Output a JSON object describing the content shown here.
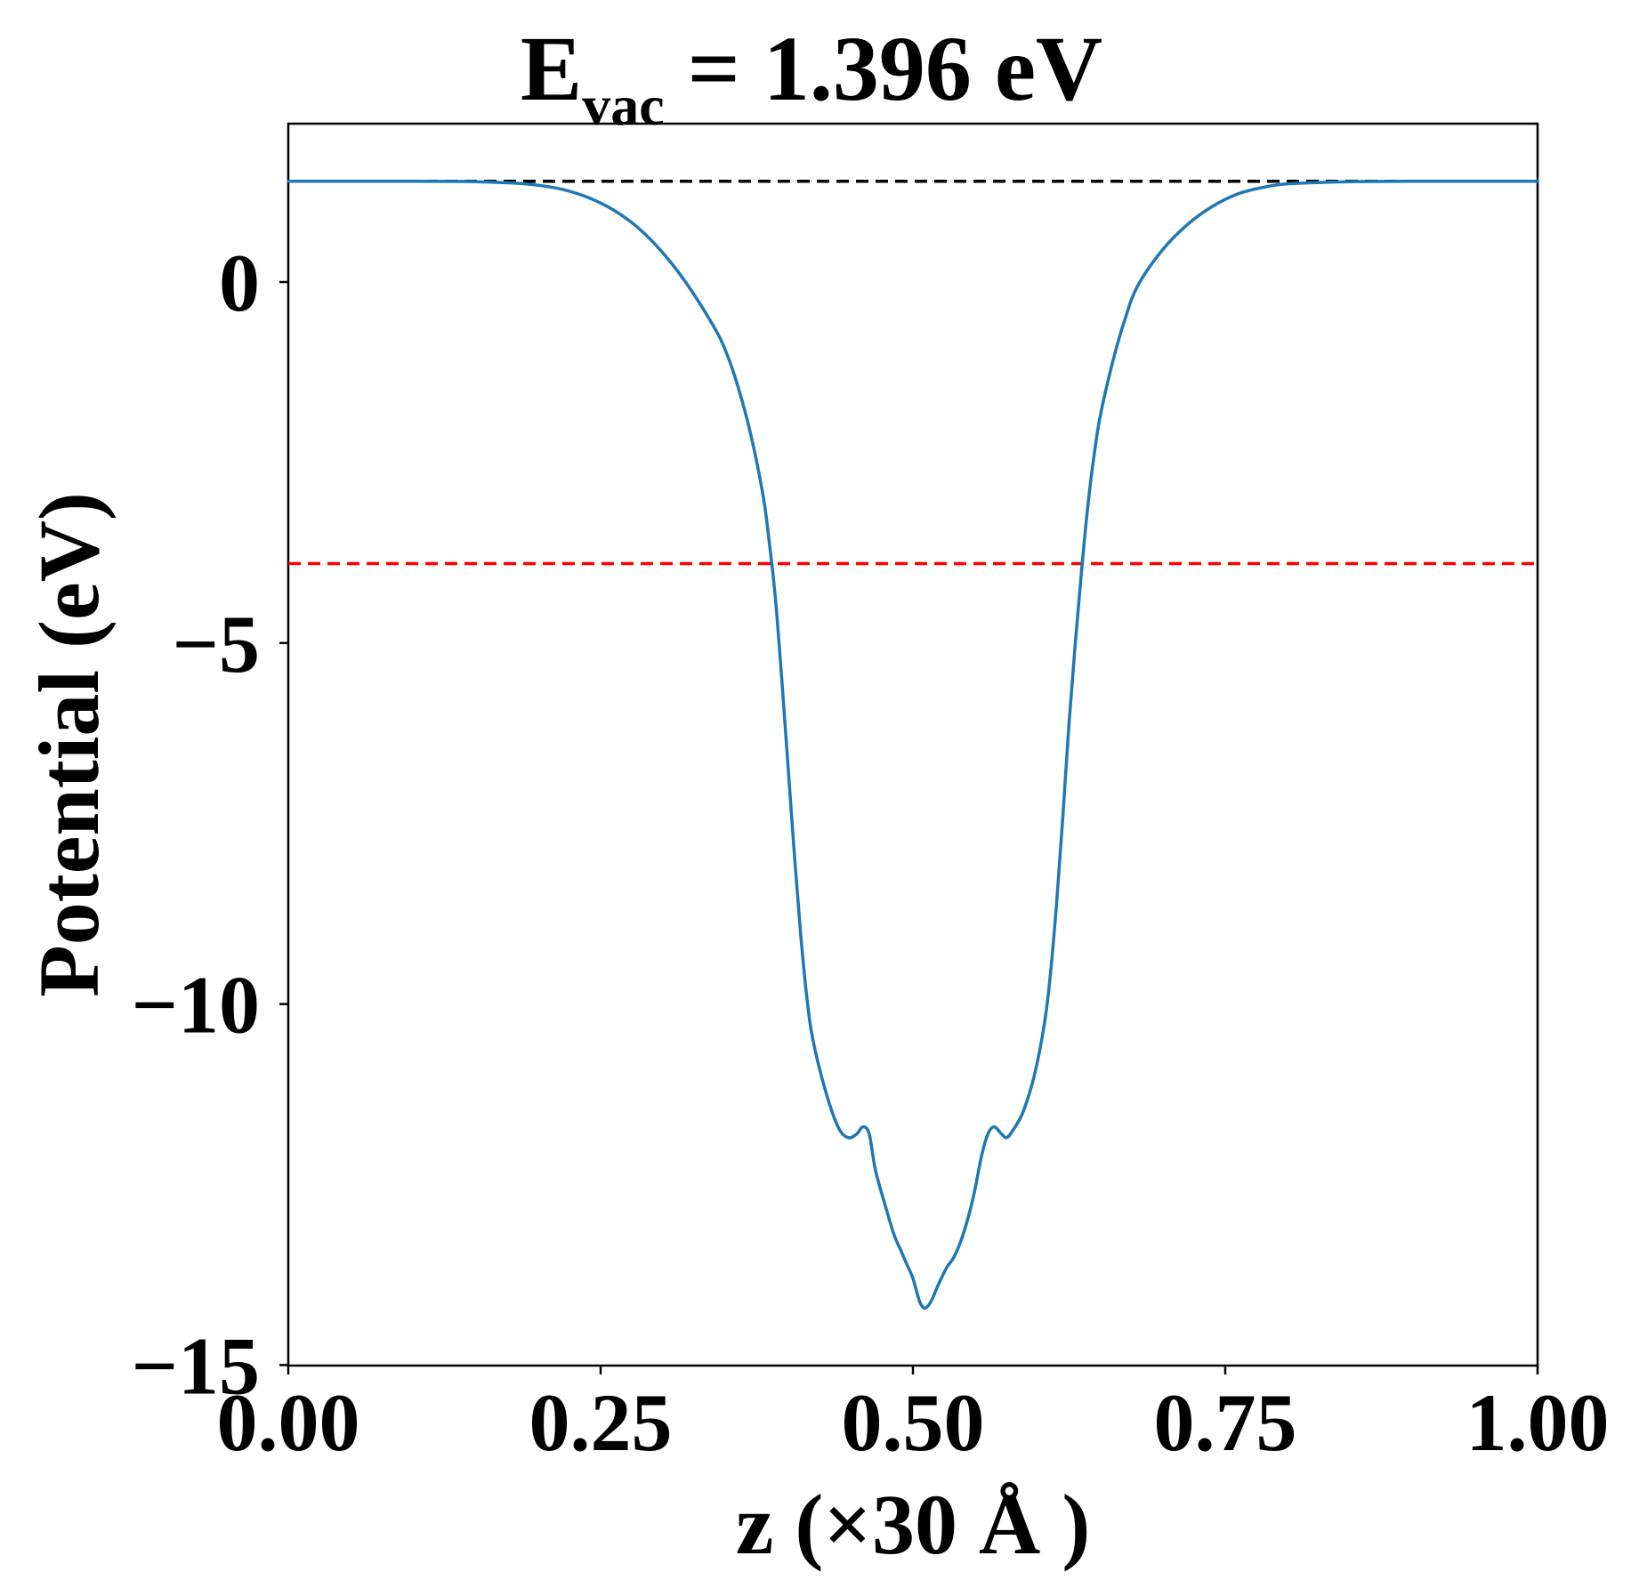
{
  "chart_data": {
    "type": "line",
    "title": {
      "main": "E",
      "subscript": "vac",
      "rest": " = 1.396 eV"
    },
    "xlabel": "z (×30 Å )",
    "ylabel": "Potential (eV)",
    "xlim": [
      0,
      1
    ],
    "ylim": [
      -15,
      2.2
    ],
    "x_ticks": [
      0.0,
      0.25,
      0.5,
      0.75,
      1.0
    ],
    "x_tick_labels": [
      "0.00",
      "0.25",
      "0.50",
      "0.75",
      "1.00"
    ],
    "y_ticks": [
      0,
      -5,
      -10,
      -15
    ],
    "y_tick_labels": [
      "0",
      "−5",
      "−10",
      "−15"
    ],
    "grid": false,
    "reference_lines": [
      {
        "y": 1.396,
        "color": "#000000",
        "style": "dashed"
      },
      {
        "y": -3.9,
        "color": "#ff0000",
        "style": "dashed"
      }
    ],
    "series": [
      {
        "color": "#1f77b4",
        "points": [
          [
            0.0,
            1.396
          ],
          [
            0.1,
            1.395
          ],
          [
            0.15,
            1.39
          ],
          [
            0.18,
            1.37
          ],
          [
            0.2,
            1.34
          ],
          [
            0.22,
            1.28
          ],
          [
            0.24,
            1.17
          ],
          [
            0.26,
            1.0
          ],
          [
            0.28,
            0.75
          ],
          [
            0.3,
            0.4
          ],
          [
            0.32,
            -0.05
          ],
          [
            0.34,
            -0.6
          ],
          [
            0.35,
            -0.95
          ],
          [
            0.36,
            -1.45
          ],
          [
            0.37,
            -2.1
          ],
          [
            0.38,
            -2.95
          ],
          [
            0.385,
            -3.6
          ],
          [
            0.39,
            -4.4
          ],
          [
            0.395,
            -5.5
          ],
          [
            0.4,
            -6.7
          ],
          [
            0.405,
            -7.9
          ],
          [
            0.41,
            -9.0
          ],
          [
            0.415,
            -9.9
          ],
          [
            0.42,
            -10.5
          ],
          [
            0.43,
            -11.2
          ],
          [
            0.44,
            -11.7
          ],
          [
            0.448,
            -11.85
          ],
          [
            0.455,
            -11.8
          ],
          [
            0.46,
            -11.7
          ],
          [
            0.465,
            -11.8
          ],
          [
            0.47,
            -12.3
          ],
          [
            0.478,
            -12.8
          ],
          [
            0.485,
            -13.2
          ],
          [
            0.49,
            -13.4
          ],
          [
            0.495,
            -13.6
          ],
          [
            0.5,
            -13.8
          ],
          [
            0.505,
            -14.1
          ],
          [
            0.508,
            -14.2
          ],
          [
            0.511,
            -14.2
          ],
          [
            0.515,
            -14.1
          ],
          [
            0.52,
            -13.9
          ],
          [
            0.527,
            -13.65
          ],
          [
            0.533,
            -13.5
          ],
          [
            0.54,
            -13.2
          ],
          [
            0.548,
            -12.7
          ],
          [
            0.555,
            -12.1
          ],
          [
            0.56,
            -11.8
          ],
          [
            0.565,
            -11.7
          ],
          [
            0.571,
            -11.8
          ],
          [
            0.575,
            -11.85
          ],
          [
            0.58,
            -11.75
          ],
          [
            0.588,
            -11.5
          ],
          [
            0.597,
            -11.0
          ],
          [
            0.605,
            -10.3
          ],
          [
            0.61,
            -9.6
          ],
          [
            0.615,
            -8.6
          ],
          [
            0.62,
            -7.4
          ],
          [
            0.625,
            -6.1
          ],
          [
            0.63,
            -5.0
          ],
          [
            0.635,
            -4.0
          ],
          [
            0.64,
            -3.1
          ],
          [
            0.645,
            -2.4
          ],
          [
            0.65,
            -1.85
          ],
          [
            0.66,
            -1.1
          ],
          [
            0.67,
            -0.5
          ],
          [
            0.68,
            -0.05
          ],
          [
            0.7,
            0.45
          ],
          [
            0.72,
            0.8
          ],
          [
            0.74,
            1.05
          ],
          [
            0.76,
            1.22
          ],
          [
            0.78,
            1.31
          ],
          [
            0.8,
            1.36
          ],
          [
            0.85,
            1.39
          ],
          [
            0.9,
            1.395
          ],
          [
            1.0,
            1.396
          ]
        ]
      }
    ]
  }
}
